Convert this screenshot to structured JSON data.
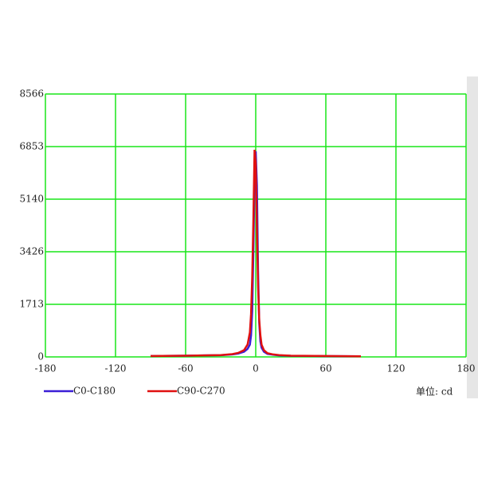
{
  "chart_data": {
    "type": "line",
    "x": [
      -90,
      -60,
      -30,
      -20,
      -15,
      -10,
      -7,
      -5,
      -4,
      -3,
      -2,
      -1,
      0,
      1,
      2,
      3,
      4,
      5,
      7,
      10,
      15,
      20,
      30,
      60,
      90
    ],
    "series": [
      {
        "name": "C0-C180",
        "color": "#3a1fd6",
        "values": [
          30,
          40,
          55,
          80,
          110,
          170,
          260,
          400,
          700,
          1500,
          3500,
          5900,
          6700,
          5600,
          2800,
          1100,
          500,
          300,
          170,
          100,
          70,
          50,
          35,
          25,
          20
        ]
      },
      {
        "name": "C90-C270",
        "color": "#e01010",
        "values": [
          30,
          40,
          60,
          90,
          130,
          220,
          400,
          800,
          1400,
          2600,
          4500,
          6750,
          6300,
          4200,
          2300,
          1200,
          700,
          400,
          220,
          120,
          80,
          60,
          40,
          30,
          20
        ]
      }
    ],
    "xlim": [
      -180,
      180
    ],
    "xticks": [
      -180,
      -120,
      -60,
      0,
      60,
      120,
      180
    ],
    "ylim": [
      0,
      8566
    ],
    "yticks": [
      0,
      1713,
      3426,
      5140,
      6853,
      8566
    ],
    "grid": true,
    "grid_color": "#19e619",
    "annotation": "单位: cd"
  }
}
